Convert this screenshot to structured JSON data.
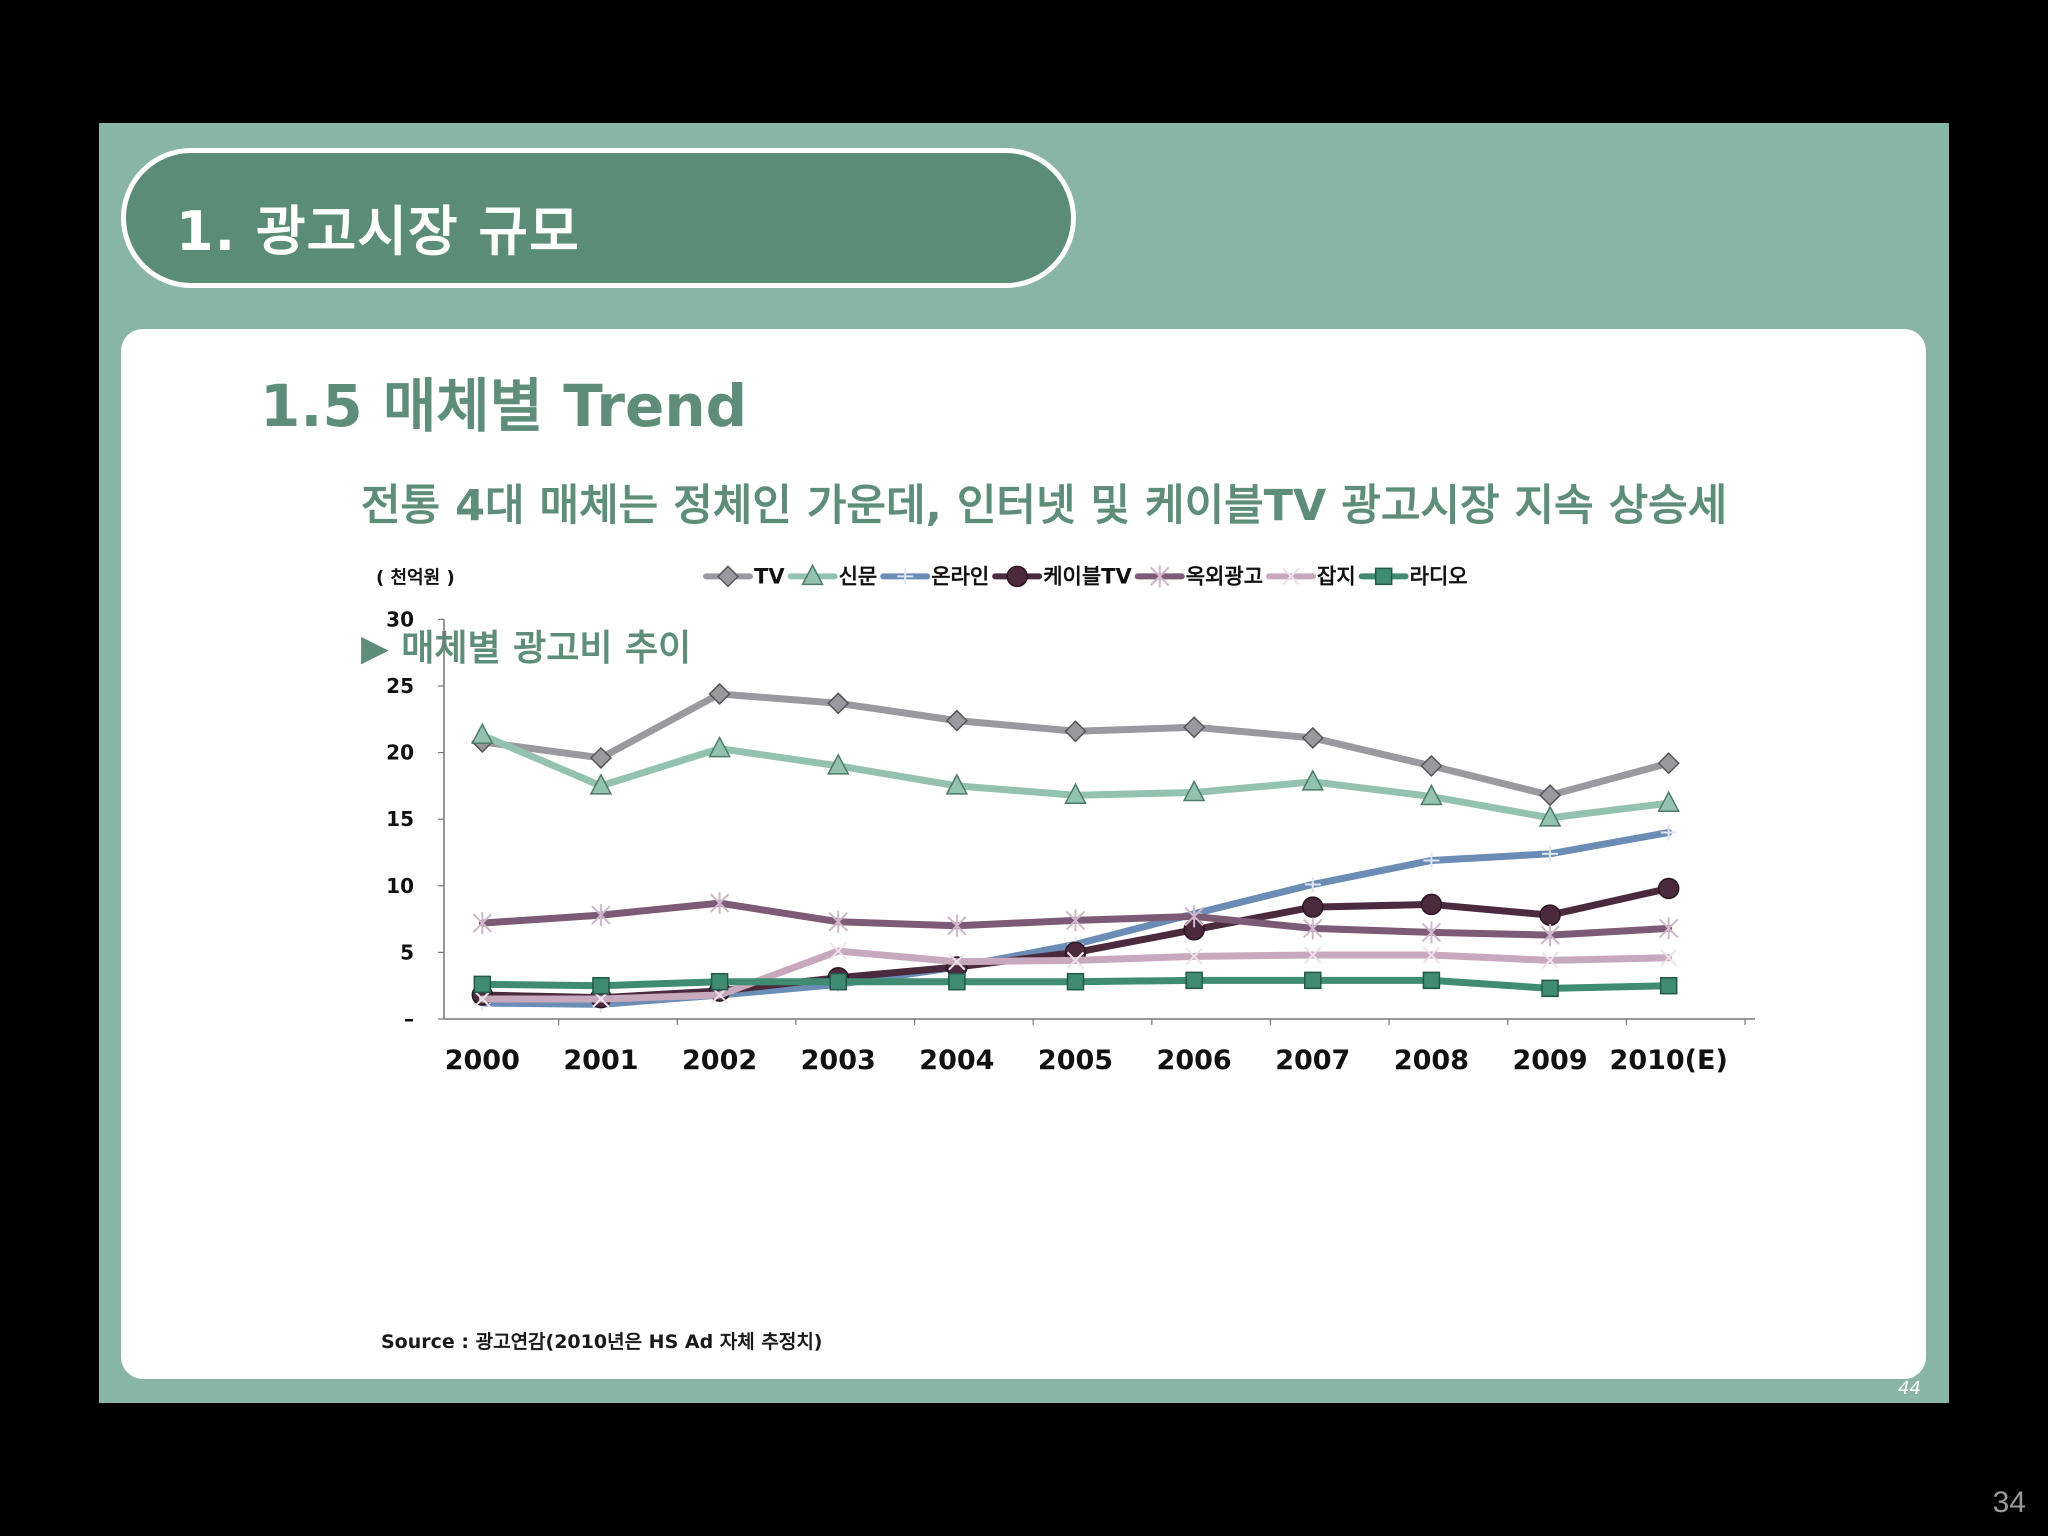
{
  "header": {
    "title": "1.  광고시장 규모"
  },
  "section": {
    "title": "1.5  매체별 Trend",
    "headline": "전통 4대 매체는 정체인 가운데, 인터넷 및 케이블TV 광고시장 지속 상승세",
    "chart_label": "▶ 매체별 광고비 추이",
    "source": "Source : 광고연감(2010년은  HS Ad 자체 추정치)"
  },
  "page_number": "44",
  "footer_number": "34",
  "colors": {
    "slide_bg": "#88b5a5",
    "header_bg": "#5a8c77",
    "accent_text": "#5e8e7a",
    "series": [
      "#9a9a9e",
      "#94c2b0",
      "#6a8cb5",
      "#4b2a3e",
      "#7d5a75",
      "#c7a8bd",
      "#3f8c72"
    ]
  },
  "chart_data": {
    "type": "line",
    "title": "매체별 광고비 추이",
    "ylabel": "( 천억원 )",
    "xlabel": "",
    "categories": [
      "2000",
      "2001",
      "2002",
      "2003",
      "2004",
      "2005",
      "2006",
      "2007",
      "2008",
      "2009",
      "2010(E)"
    ],
    "y_ticks": [
      "–",
      "5",
      "10",
      "15",
      "20",
      "25",
      "30"
    ],
    "ylim": [
      0,
      30
    ],
    "legend_position": "top",
    "series": [
      {
        "name": "TV",
        "marker": "diamond",
        "values": [
          20.8,
          19.6,
          24.4,
          23.7,
          22.4,
          21.6,
          21.9,
          21.1,
          19.0,
          16.8,
          19.2
        ]
      },
      {
        "name": "신문",
        "marker": "triangle",
        "values": [
          21.3,
          17.5,
          20.3,
          19.0,
          17.5,
          16.8,
          17.0,
          17.8,
          16.7,
          15.1,
          16.2
        ]
      },
      {
        "name": "온라인",
        "marker": "plus",
        "values": [
          1.2,
          1.1,
          1.8,
          2.6,
          3.9,
          5.6,
          7.9,
          10.1,
          11.9,
          12.4,
          14.0
        ]
      },
      {
        "name": "케이블TV",
        "marker": "circle",
        "values": [
          1.8,
          1.6,
          2.1,
          3.1,
          3.9,
          5.0,
          6.7,
          8.4,
          8.6,
          7.8,
          9.8
        ]
      },
      {
        "name": "옥외광고",
        "marker": "star",
        "values": [
          7.2,
          7.8,
          8.7,
          7.3,
          7.0,
          7.4,
          7.7,
          6.8,
          6.5,
          6.3,
          6.8
        ]
      },
      {
        "name": "잡지",
        "marker": "cross",
        "values": [
          1.5,
          1.5,
          1.8,
          5.1,
          4.3,
          4.4,
          4.7,
          4.8,
          4.8,
          4.4,
          4.6
        ]
      },
      {
        "name": "라디오",
        "marker": "square",
        "values": [
          2.6,
          2.5,
          2.8,
          2.8,
          2.8,
          2.8,
          2.9,
          2.9,
          2.9,
          2.3,
          2.5
        ]
      }
    ]
  }
}
